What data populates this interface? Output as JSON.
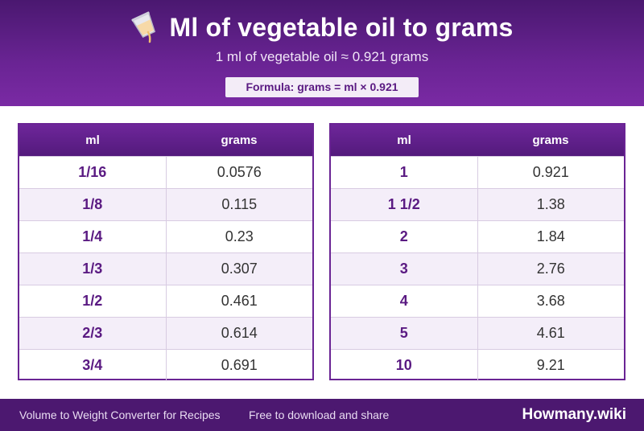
{
  "header": {
    "title": "Ml of vegetable oil to grams",
    "subtitle": "1 ml of vegetable oil ≈ 0.921 grams",
    "formula": "Formula: grams = ml × 0.921",
    "icon": "pouring-cup-icon"
  },
  "tables": {
    "left": {
      "col1": "ml",
      "col2": "grams",
      "rows": [
        {
          "ml": "1/16",
          "grams": "0.0576"
        },
        {
          "ml": "1/8",
          "grams": "0.115"
        },
        {
          "ml": "1/4",
          "grams": "0.23"
        },
        {
          "ml": "1/3",
          "grams": "0.307"
        },
        {
          "ml": "1/2",
          "grams": "0.461"
        },
        {
          "ml": "2/3",
          "grams": "0.614"
        },
        {
          "ml": "3/4",
          "grams": "0.691"
        }
      ]
    },
    "right": {
      "col1": "ml",
      "col2": "grams",
      "rows": [
        {
          "ml": "1",
          "grams": "0.921"
        },
        {
          "ml": "1 1/2",
          "grams": "1.38"
        },
        {
          "ml": "2",
          "grams": "1.84"
        },
        {
          "ml": "3",
          "grams": "2.76"
        },
        {
          "ml": "4",
          "grams": "3.68"
        },
        {
          "ml": "5",
          "grams": "4.61"
        },
        {
          "ml": "10",
          "grams": "9.21"
        }
      ]
    }
  },
  "footer": {
    "left": "Volume to Weight Converter for Recipes",
    "middle": "Free to download and share",
    "brand": "Howmany.wiki"
  },
  "colors": {
    "primary": "#6a2494",
    "dark": "#4c1870",
    "accent_text": "#5a1a82"
  }
}
